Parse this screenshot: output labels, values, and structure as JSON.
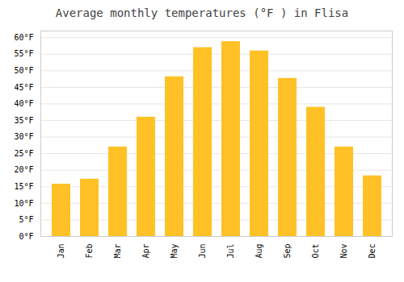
{
  "chart_data": {
    "type": "bar",
    "title": "Average monthly temperatures (°F ) in Flisa",
    "categories": [
      "Jan",
      "Feb",
      "Mar",
      "Apr",
      "May",
      "Jun",
      "Jul",
      "Aug",
      "Sep",
      "Oct",
      "Nov",
      "Dec"
    ],
    "values": [
      15.8,
      17.3,
      27.0,
      36.0,
      48.2,
      57.0,
      58.8,
      56.0,
      47.7,
      39.0,
      27.0,
      18.3
    ],
    "color": "#FFC125",
    "ylim": [
      0,
      62
    ],
    "yticks": [
      {
        "value": 0,
        "label": "0°F"
      },
      {
        "value": 5,
        "label": "5°F"
      },
      {
        "value": 10,
        "label": "10°F"
      },
      {
        "value": 15,
        "label": "15°F"
      },
      {
        "value": 20,
        "label": "20°F"
      },
      {
        "value": 25,
        "label": "25°F"
      },
      {
        "value": 30,
        "label": "30°F"
      },
      {
        "value": 35,
        "label": "35°F"
      },
      {
        "value": 40,
        "label": "40°F"
      },
      {
        "value": 45,
        "label": "45°F"
      },
      {
        "value": 50,
        "label": "50°F"
      },
      {
        "value": 55,
        "label": "55°F"
      },
      {
        "value": 60,
        "label": "60°F"
      }
    ],
    "grid": true
  }
}
